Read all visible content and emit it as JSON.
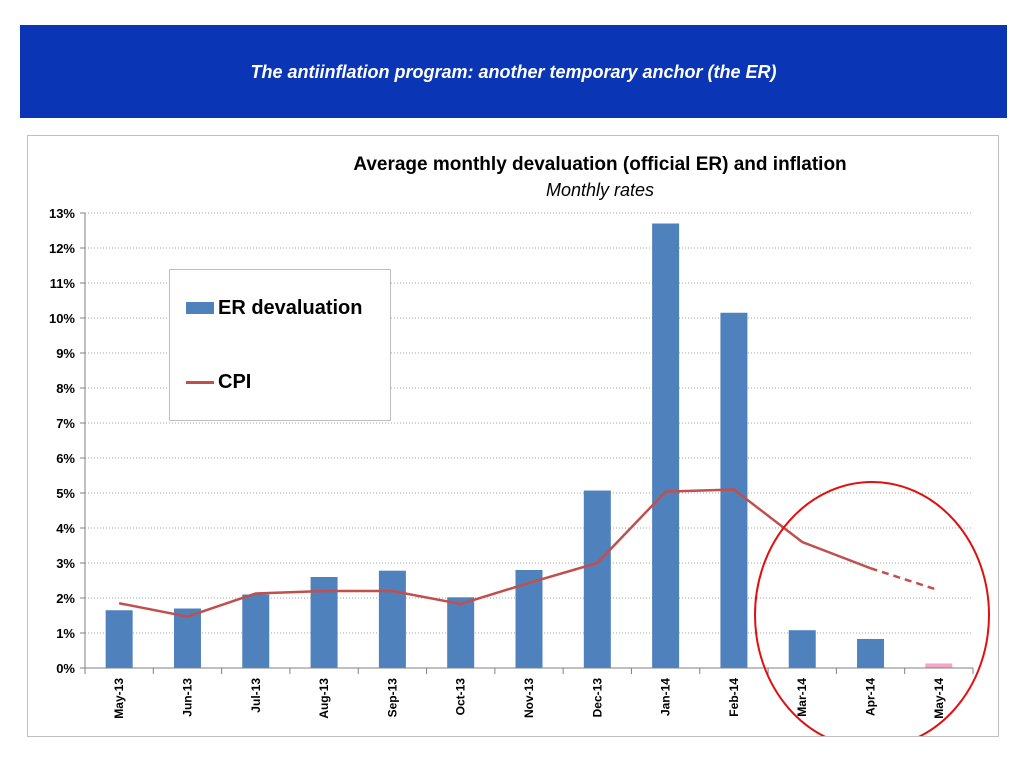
{
  "header": {
    "title": "The antiinflation program: another temporary  anchor (the ER)"
  },
  "colors": {
    "banner": "#0A36B5",
    "bar": "#4F81BD",
    "bar_projected": "#F4A6C6",
    "line": "#C0504D",
    "circle": "#E01010",
    "grid": "#A6A6A6"
  },
  "chart_data": {
    "type": "bar",
    "title": "Average monthly devaluation (official ER) and inflation",
    "subtitle": "Monthly rates",
    "xlabel": "",
    "ylabel": "",
    "categories": [
      "May-13",
      "Jun-13",
      "Jul-13",
      "Aug-13",
      "Sep-13",
      "Oct-13",
      "Nov-13",
      "Dec-13",
      "Jan-14",
      "Feb-14",
      "Mar-14",
      "Apr-14",
      "May-14"
    ],
    "ylim": [
      0,
      13
    ],
    "ytick_labels": [
      "0%",
      "1%",
      "2%",
      "3%",
      "4%",
      "5%",
      "6%",
      "7%",
      "8%",
      "9%",
      "10%",
      "11%",
      "12%",
      "13%"
    ],
    "grid": true,
    "series": [
      {
        "name": "ER devaluation",
        "type": "bar",
        "values": [
          1.65,
          1.7,
          2.1,
          2.6,
          2.78,
          2.02,
          2.8,
          5.07,
          12.7,
          10.15,
          1.08,
          0.83,
          0.13
        ],
        "projected_from_index": 12
      },
      {
        "name": "CPI",
        "type": "line",
        "values": [
          1.85,
          1.47,
          2.13,
          2.2,
          2.2,
          1.83,
          2.43,
          3.0,
          5.04,
          5.1,
          3.6,
          2.85,
          2.22
        ],
        "dashed_from_index": 11
      }
    ],
    "legend_position": "upper-left",
    "annotation": "red circle highlighting Mar-14 to May-14"
  }
}
